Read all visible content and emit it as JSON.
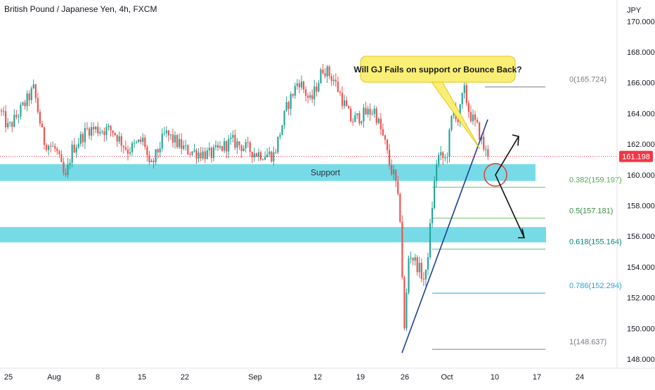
{
  "header": {
    "title": "British Pound / Japanese Yen, 4h, FXCM"
  },
  "price_axis": {
    "unit": "JPY",
    "ticks": [
      "148.000",
      "150.000",
      "152.000",
      "154.000",
      "156.000",
      "158.000",
      "160.000",
      "162.000",
      "164.000",
      "166.000",
      "168.000",
      "170.000"
    ],
    "current_price": "161.198"
  },
  "time_axis": {
    "ticks": [
      "25",
      "Aug",
      "8",
      "15",
      "22",
      "Sep",
      "12",
      "19",
      "26",
      "Oct",
      "10",
      "17",
      "24"
    ]
  },
  "annotations": {
    "callout": "Will GJ Fails on support or Bounce Back?",
    "support_label": "Support",
    "fib": [
      {
        "label": "0(165.724)",
        "color": "#787b86"
      },
      {
        "label": "0.382(159.197)",
        "color": "#4caf50"
      },
      {
        "label": "0.5(157.181)",
        "color": "#388e3c"
      },
      {
        "label": "0.618(155.164)",
        "color": "#00897b"
      },
      {
        "label": "0.786(152.294)",
        "color": "#29a3d4"
      },
      {
        "label": "1(148.637)",
        "color": "#787b86"
      }
    ]
  },
  "colors": {
    "up": "#26a69a",
    "down": "#ef5350",
    "zone": "#70d9e6",
    "trendline": "#1c3f94",
    "fib_line": "#6fbf73",
    "price_tag": "#f23645"
  },
  "chart_data": {
    "type": "candlestick",
    "instrument": "British Pound / Japanese Yen",
    "timeframe": "4h",
    "source": "FXCM",
    "ylim": [
      147.6,
      170.4
    ],
    "fib_levels": [
      {
        "ratio": 0,
        "price": 165.724
      },
      {
        "ratio": 0.382,
        "price": 159.197
      },
      {
        "ratio": 0.5,
        "price": 157.181
      },
      {
        "ratio": 0.618,
        "price": 155.164
      },
      {
        "ratio": 0.786,
        "price": 152.294
      },
      {
        "ratio": 1,
        "price": 148.637
      }
    ],
    "support_zones": [
      [
        159.6,
        160.7
      ],
      [
        155.6,
        156.6
      ]
    ],
    "path_knots": [
      [
        0,
        164.2
      ],
      [
        12,
        163.0
      ],
      [
        35,
        164.6
      ],
      [
        48,
        165.6
      ],
      [
        62,
        162.2
      ],
      [
        80,
        161.6
      ],
      [
        93,
        159.6
      ],
      [
        102,
        161.6
      ],
      [
        125,
        163.0
      ],
      [
        160,
        162.9
      ],
      [
        182,
        161.6
      ],
      [
        205,
        162.3
      ],
      [
        213,
        160.3
      ],
      [
        235,
        162.7
      ],
      [
        265,
        161.6
      ],
      [
        300,
        161.3
      ],
      [
        330,
        162.2
      ],
      [
        365,
        161.4
      ],
      [
        390,
        161.3
      ],
      [
        408,
        164.4
      ],
      [
        425,
        166.2
      ],
      [
        442,
        164.7
      ],
      [
        460,
        167.0
      ],
      [
        475,
        166.2
      ],
      [
        500,
        163.5
      ],
      [
        520,
        164.0
      ],
      [
        533,
        164.2
      ],
      [
        548,
        162.0
      ],
      [
        555,
        160.5
      ],
      [
        562,
        159.8
      ],
      [
        570,
        157.0
      ],
      [
        575,
        149.5
      ],
      [
        582,
        155.0
      ],
      [
        595,
        154.0
      ],
      [
        605,
        153.0
      ],
      [
        615,
        158.0
      ],
      [
        622,
        161.2
      ],
      [
        635,
        161.0
      ],
      [
        645,
        164.5
      ],
      [
        652,
        163.5
      ],
      [
        660,
        165.6
      ],
      [
        668,
        164.0
      ],
      [
        680,
        163.0
      ],
      [
        690,
        161.5
      ],
      [
        697,
        161.2
      ]
    ],
    "last_price": 161.198
  }
}
